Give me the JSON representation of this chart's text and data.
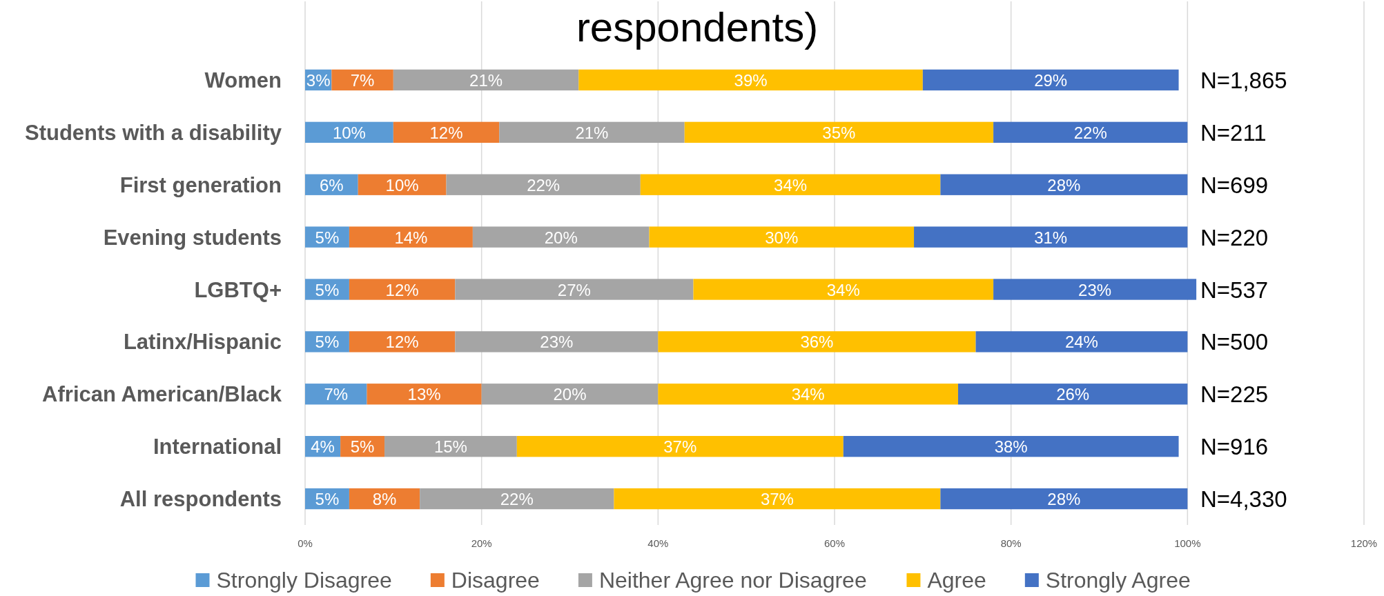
{
  "chart_data": {
    "type": "bar",
    "orientation": "horizontal",
    "stacked": true,
    "title": "respondents)",
    "categories": [
      "Women",
      "Students with a disability",
      "First generation",
      "Evening students",
      "LGBTQ+",
      "Latinx/Hispanic",
      "African American/Black",
      "International",
      "All respondents"
    ],
    "series": [
      {
        "name": "Strongly Disagree",
        "color": "#5b9bd5",
        "values": [
          3,
          10,
          6,
          5,
          5,
          5,
          7,
          4,
          5
        ],
        "value_labels": [
          "3%",
          "10%",
          "6%",
          "5%",
          "5%",
          "5%",
          "7%",
          "4%",
          "5%"
        ]
      },
      {
        "name": "Disagree",
        "color": "#ed7d31",
        "values": [
          7,
          12,
          10,
          14,
          12,
          12,
          13,
          5,
          8
        ],
        "value_labels": [
          "7%",
          "12%",
          "10%",
          "14%",
          "12%",
          "12%",
          "13%",
          "5%",
          "8%"
        ]
      },
      {
        "name": "Neither Agree nor Disagree",
        "color": "#a5a5a5",
        "values": [
          21,
          21,
          22,
          20,
          27,
          23,
          20,
          15,
          22
        ],
        "value_labels": [
          "21%",
          "21%",
          "22%",
          "20%",
          "27%",
          "23%",
          "20%",
          "15%",
          "22%"
        ]
      },
      {
        "name": "Agree",
        "color": "#ffc000",
        "values": [
          39,
          35,
          34,
          30,
          34,
          36,
          34,
          37,
          37
        ],
        "value_labels": [
          "39%",
          "35%",
          "34%",
          "30%",
          "34%",
          "36%",
          "34%",
          "37%",
          "37%"
        ]
      },
      {
        "name": "Strongly Agree",
        "color": "#4472c4",
        "values": [
          29,
          22,
          28,
          31,
          23,
          24,
          26,
          38,
          28
        ],
        "value_labels": [
          "29%",
          "22%",
          "28%",
          "31%",
          "23%",
          "24%",
          "26%",
          "38%",
          "28%"
        ]
      }
    ],
    "xlim": [
      0,
      120
    ],
    "xticks": [
      {
        "value": 0,
        "label": "0%"
      },
      {
        "value": 20,
        "label": "20%"
      },
      {
        "value": 40,
        "label": "40%"
      },
      {
        "value": 60,
        "label": "60%"
      },
      {
        "value": 80,
        "label": "80%"
      },
      {
        "value": 100,
        "label": "100%"
      },
      {
        "value": 120,
        "label": "120%"
      }
    ],
    "grid": "x",
    "legend": "bottom",
    "annotations": [
      "N=1,865",
      "N=211",
      "N=699",
      "N=220",
      "N=537",
      "N=500",
      "N=225",
      "N=916",
      "N=4,330"
    ]
  }
}
